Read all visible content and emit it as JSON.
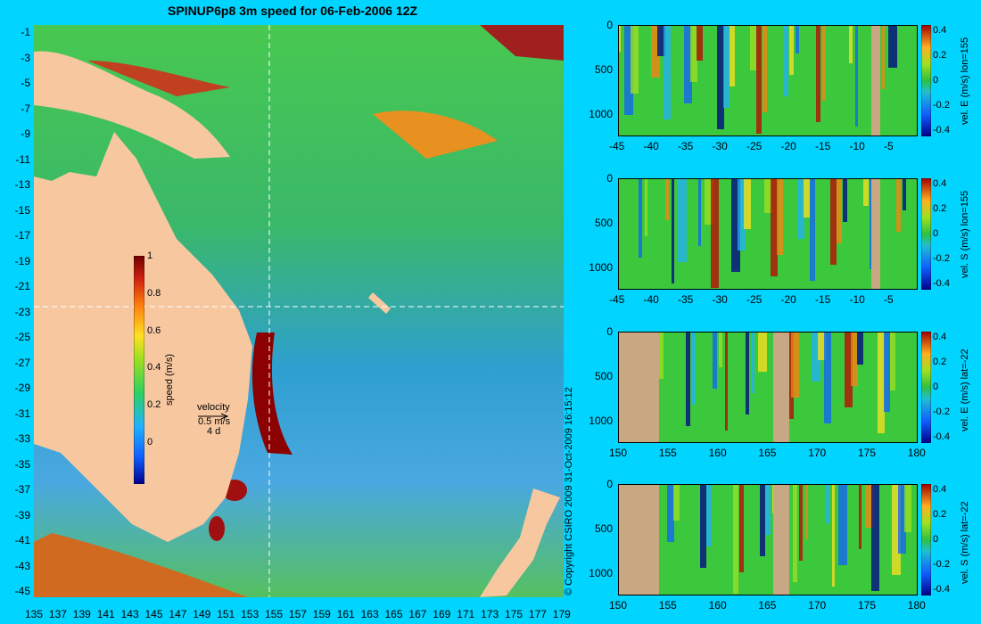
{
  "title": "SPINUP6p8 3m speed for 06-Feb-2006 12Z",
  "copyright": "© Copyright CSIRO 2009   31-Oct-2009 16:15:12",
  "map": {
    "lat_ticks": [
      "-1",
      "-3",
      "-5",
      "-7",
      "-9",
      "-11",
      "-13",
      "-15",
      "-17",
      "-19",
      "-21",
      "-23",
      "-25",
      "-27",
      "-29",
      "-31",
      "-33",
      "-35",
      "-37",
      "-39",
      "-41",
      "-43",
      "-45"
    ],
    "lon_ticks": [
      "135",
      "137",
      "139",
      "141",
      "143",
      "145",
      "147",
      "149",
      "151",
      "153",
      "155",
      "157",
      "159",
      "161",
      "163",
      "165",
      "167",
      "169",
      "171",
      "173",
      "175",
      "177",
      "179"
    ],
    "colorbar": {
      "label": "speed (m/s)",
      "ticks": [
        "1",
        "0.8",
        "0.6",
        "0.4",
        "0.2",
        "0"
      ]
    },
    "velocity_legend": {
      "title": "velocity",
      "speed": "0.5 m/s",
      "duration": "4 d"
    }
  },
  "sections": [
    {
      "label": "vel. E (m/s) lon=155",
      "x_ticks": [
        "-45",
        "-40",
        "-35",
        "-30",
        "-25",
        "-20",
        "-15",
        "-10",
        "-5"
      ],
      "y_ticks": [
        "0",
        "500",
        "1000"
      ],
      "cb_ticks": [
        "0.4",
        "0.2",
        "0",
        "-0.2",
        "-0.4"
      ]
    },
    {
      "label": "vel. S (m/s) lon=155",
      "x_ticks": [
        "-45",
        "-40",
        "-35",
        "-30",
        "-25",
        "-20",
        "-15",
        "-10",
        "-5"
      ],
      "y_ticks": [
        "0",
        "500",
        "1000"
      ],
      "cb_ticks": [
        "0.4",
        "0.2",
        "0",
        "-0.2",
        "-0.4"
      ]
    },
    {
      "label": "vel. E (m/s) lat=-22",
      "x_ticks": [
        "150",
        "155",
        "160",
        "165",
        "170",
        "175",
        "180"
      ],
      "y_ticks": [
        "0",
        "500",
        "1000"
      ],
      "cb_ticks": [
        "0.4",
        "0.2",
        "0",
        "-0.2",
        "-0.4"
      ]
    },
    {
      "label": "vel. S (m/s) lat=-22",
      "x_ticks": [
        "150",
        "155",
        "160",
        "165",
        "170",
        "175",
        "180"
      ],
      "y_ticks": [
        "0",
        "500",
        "1000"
      ],
      "cb_ticks": [
        "0.4",
        "0.2",
        "0",
        "-0.2",
        "-0.4"
      ]
    }
  ],
  "colors": {
    "background": "#00d4ff",
    "land": "#f7c8a0",
    "section_land": "#c8a882",
    "ocean_base": "#3cc83c"
  }
}
